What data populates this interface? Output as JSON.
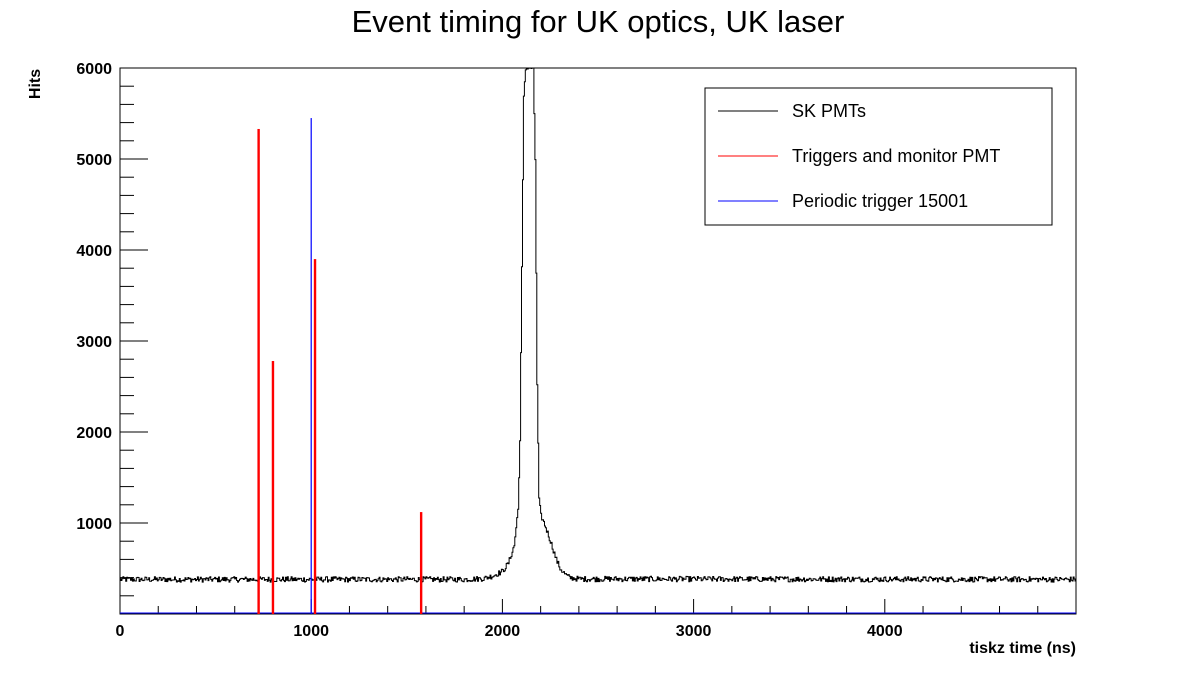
{
  "chart_data": {
    "type": "line",
    "title": "Event timing for UK optics, UK laser",
    "xlabel": "tiskz time (ns)",
    "ylabel": "Hits",
    "xlim": [
      0,
      5000
    ],
    "ylim": [
      0,
      6000
    ],
    "x_ticks": [
      0,
      1000,
      2000,
      3000,
      4000
    ],
    "y_ticks": [
      1000,
      2000,
      3000,
      4000,
      5000,
      6000
    ],
    "grid": false,
    "legend_position": "top-right",
    "series": [
      {
        "name": "SK PMTs",
        "color": "#000000",
        "style": "histogram",
        "baseline": 380,
        "x": [
          0,
          1800,
          1900,
          1950,
          2000,
          2030,
          2060,
          2080,
          2090,
          2100,
          2110,
          2120,
          2140,
          2160,
          2170,
          2180,
          2190,
          2200,
          2220,
          2250,
          2280,
          2300,
          2330,
          2350,
          2400,
          5000
        ],
        "y": [
          380,
          380,
          390,
          420,
          470,
          560,
          750,
          1150,
          1900,
          3800,
          5700,
          6000,
          6000,
          6000,
          5000,
          2500,
          1250,
          1080,
          980,
          800,
          600,
          500,
          430,
          400,
          385,
          380
        ]
      },
      {
        "name": "Triggers and monitor PMT",
        "color": "#ff0000",
        "style": "spikes",
        "x": [
          725,
          800,
          1020,
          1575
        ],
        "y": [
          5330,
          2780,
          3900,
          1120
        ]
      },
      {
        "name": "Periodic trigger 15001",
        "color": "#0000ff",
        "style": "spikes",
        "x": [
          1000
        ],
        "y": [
          5450
        ]
      }
    ]
  }
}
